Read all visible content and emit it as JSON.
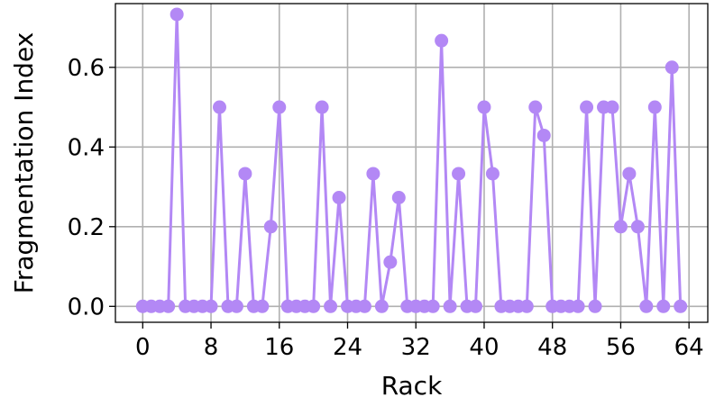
{
  "chart_data": {
    "type": "line",
    "title": "",
    "xlabel": "Rack",
    "ylabel": "Fragmentation Index",
    "xlim": [
      -3.2,
      66.2
    ],
    "ylim": [
      -0.04,
      0.76
    ],
    "xticks": [
      0,
      8,
      16,
      24,
      32,
      40,
      48,
      56,
      64
    ],
    "yticks": [
      0.0,
      0.2,
      0.4,
      0.6
    ],
    "ytick_labels": [
      "0.0",
      "0.2",
      "0.4",
      "0.6"
    ],
    "grid": true,
    "legend": "none",
    "series": [
      {
        "color": "#b388f5",
        "marker": "circle",
        "x": [
          0,
          1,
          2,
          3,
          4,
          5,
          6,
          7,
          8,
          9,
          10,
          11,
          12,
          13,
          14,
          15,
          16,
          17,
          18,
          19,
          20,
          21,
          22,
          23,
          24,
          25,
          26,
          27,
          28,
          29,
          30,
          31,
          32,
          33,
          34,
          35,
          36,
          37,
          38,
          39,
          40,
          41,
          42,
          43,
          44,
          45,
          46,
          47,
          48,
          49,
          50,
          51,
          52,
          53,
          54,
          55,
          56,
          57,
          58,
          59,
          60,
          61,
          62,
          63
        ],
        "values": [
          0,
          0,
          0,
          0,
          0.733,
          0,
          0,
          0,
          0,
          0.5,
          0,
          0,
          0.333,
          0,
          0,
          0.2,
          0.5,
          0,
          0,
          0,
          0,
          0.5,
          0,
          0.273,
          0,
          0,
          0,
          0.333,
          0,
          0.111,
          0.273,
          0,
          0,
          0,
          0,
          0.667,
          0,
          0.333,
          0,
          0,
          0.5,
          0.333,
          0,
          0,
          0,
          0,
          0.5,
          0.429,
          0,
          0,
          0,
          0,
          0.5,
          0,
          0.5,
          0.5,
          0.2,
          0.333,
          0.2,
          0,
          0.5,
          0,
          0.6,
          0
        ]
      }
    ]
  }
}
